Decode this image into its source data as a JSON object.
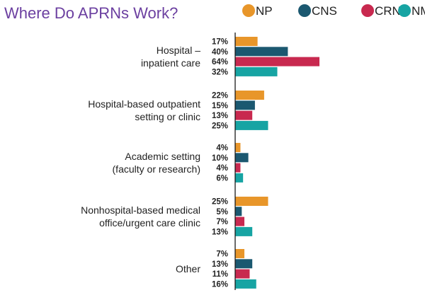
{
  "title": "Where Do APRNs Work?",
  "colors": {
    "title": "#6b3fa0",
    "axis": "#1a1a1a",
    "text": "#222222"
  },
  "chart_data": {
    "type": "bar",
    "orientation": "horizontal",
    "title": "Where Do APRNs Work?",
    "legend_position": "top-right",
    "grid": false,
    "xlim": [
      0,
      64
    ],
    "categories": [
      {
        "lines": [
          "Hospital –",
          "inpatient care"
        ]
      },
      {
        "lines": [
          "Hospital-based outpatient",
          "setting or clinic"
        ]
      },
      {
        "lines": [
          "Academic setting",
          "(faculty or research)"
        ]
      },
      {
        "lines": [
          "Nonhospital-based medical",
          "office/urgent care clinic"
        ]
      },
      {
        "lines": [
          "Other"
        ]
      }
    ],
    "series": [
      {
        "name": "NP",
        "color": "#e8962a",
        "values": [
          17,
          22,
          4,
          25,
          7
        ],
        "labels": [
          "17%",
          "22%",
          "4%",
          "25%",
          "7%"
        ]
      },
      {
        "name": "CNS",
        "color": "#1b5870",
        "values": [
          40,
          15,
          10,
          5,
          13
        ],
        "labels": [
          "40%",
          "15%",
          "10%",
          "5%",
          "13%"
        ]
      },
      {
        "name": "CRNA",
        "color": "#c8294f",
        "values": [
          64,
          13,
          4,
          7,
          11
        ],
        "labels": [
          "64%",
          "13%",
          "4%",
          "7%",
          "11%"
        ]
      },
      {
        "name": "NM",
        "color": "#17a4a3",
        "values": [
          32,
          25,
          6,
          13,
          16
        ],
        "labels": [
          "32%",
          "25%",
          "6%",
          "13%",
          "16%"
        ]
      }
    ]
  }
}
